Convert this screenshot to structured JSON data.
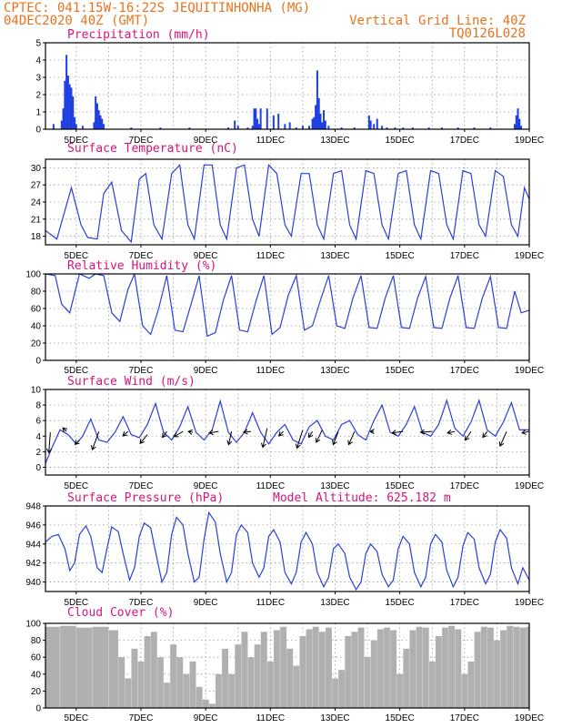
{
  "header": {
    "line1": "CPTEC:   041:15W-16:22S   JEQUITINHONHA (MG)",
    "line2": "04DEC2020 40Z (GMT)",
    "grid_note": "Vertical Grid Line: 40Z",
    "code": "TQ0126L028"
  },
  "x_tick_labels": [
    "5DEC",
    "7DEC",
    "9DEC",
    "11DEC",
    "13DEC",
    "15DEC",
    "17DEC",
    "19DEC"
  ],
  "colors": {
    "series": "#2a3fd8",
    "bars": "#1f3fe0",
    "cloud": "#b0b0b0",
    "title": "#d6147c",
    "header": "#e8731c"
  },
  "chart_data": [
    {
      "type": "bar",
      "title": "Precipitation (mm/h)",
      "ylim": [
        0,
        5
      ],
      "yticks": [
        0,
        1,
        2,
        3,
        4,
        5
      ],
      "x_day_range": [
        4.05,
        19.0
      ],
      "x": [
        4.3,
        4.55,
        4.6,
        4.65,
        4.7,
        4.75,
        4.8,
        4.85,
        4.9,
        4.95,
        5.0,
        5.2,
        5.55,
        5.6,
        5.65,
        5.7,
        5.75,
        5.8,
        5.85,
        6.7,
        7.6,
        8.5,
        9.7,
        9.9,
        10.0,
        10.3,
        10.45,
        10.5,
        10.55,
        10.6,
        10.65,
        10.7,
        10.9,
        11.1,
        11.25,
        11.45,
        11.6,
        11.8,
        12.0,
        12.2,
        12.3,
        12.35,
        12.4,
        12.45,
        12.5,
        12.55,
        12.6,
        12.65,
        12.7,
        12.8,
        13.2,
        13.6,
        14.05,
        14.1,
        14.2,
        14.3,
        14.45,
        14.6,
        14.85,
        15.1,
        15.4,
        15.9,
        16.3,
        16.8,
        17.3,
        17.8,
        18.55,
        18.6,
        18.65,
        18.7,
        18.75
      ],
      "values": [
        0.3,
        0.5,
        1.2,
        2.8,
        4.3,
        3.1,
        2.6,
        2.4,
        1.9,
        0.7,
        0.3,
        0.2,
        0.4,
        1.9,
        1.5,
        1.1,
        0.8,
        0.6,
        0.3,
        0.1,
        0.1,
        0.1,
        0.1,
        0.5,
        0.2,
        0.1,
        0.2,
        1.2,
        1.2,
        0.6,
        0.3,
        1.2,
        1.2,
        0.8,
        0.9,
        0.3,
        0.4,
        0.1,
        0.2,
        0.2,
        0.6,
        0.7,
        1.4,
        3.4,
        1.8,
        0.9,
        0.4,
        1.1,
        0.5,
        0.2,
        0.1,
        0.1,
        0.8,
        0.5,
        0.3,
        0.6,
        0.2,
        0.1,
        0.1,
        0.1,
        0.1,
        0.1,
        0.1,
        0.1,
        0.1,
        0.1,
        0.3,
        0.8,
        1.2,
        0.6,
        0.2
      ]
    },
    {
      "type": "line",
      "title": "Surface Temperature (nC)",
      "ylim": [
        16.5,
        31.5
      ],
      "yticks": [
        18,
        21,
        24,
        27,
        30
      ],
      "x_day_range": [
        4.05,
        19.0
      ],
      "x": [
        4.05,
        4.4,
        4.85,
        5.15,
        5.35,
        5.65,
        5.85,
        6.1,
        6.4,
        6.7,
        6.95,
        7.15,
        7.4,
        7.65,
        7.95,
        8.2,
        8.45,
        8.65,
        8.95,
        9.2,
        9.45,
        9.65,
        9.95,
        10.2,
        10.45,
        10.65,
        10.95,
        11.2,
        11.45,
        11.65,
        11.95,
        12.2,
        12.45,
        12.65,
        12.95,
        13.2,
        13.45,
        13.65,
        13.95,
        14.2,
        14.45,
        14.65,
        14.95,
        15.2,
        15.45,
        15.65,
        15.95,
        16.2,
        16.45,
        16.65,
        16.95,
        17.2,
        17.45,
        17.65,
        17.95,
        18.2,
        18.45,
        18.65,
        18.85,
        19.0
      ],
      "values": [
        19.0,
        17.5,
        26.5,
        20.0,
        17.8,
        17.5,
        25.5,
        27.5,
        19.0,
        17.0,
        28.0,
        29.0,
        20.0,
        17.5,
        29.0,
        30.5,
        20.0,
        17.5,
        30.5,
        30.5,
        20.0,
        17.5,
        30.0,
        30.5,
        21.0,
        18.0,
        30.5,
        29.0,
        20.0,
        18.0,
        29.0,
        29.0,
        20.0,
        17.5,
        29.0,
        29.5,
        20.0,
        17.5,
        29.5,
        29.0,
        20.0,
        17.5,
        29.0,
        29.5,
        20.0,
        17.5,
        29.5,
        29.0,
        20.0,
        17.5,
        29.5,
        29.0,
        20.0,
        18.0,
        29.5,
        28.5,
        20.0,
        18.0,
        26.5,
        24.5
      ]
    },
    {
      "type": "line",
      "title": "Relative Humidity (%)",
      "ylim": [
        0,
        100
      ],
      "yticks": [
        0,
        20,
        40,
        60,
        80,
        100
      ],
      "x_day_range": [
        4.05,
        19.0
      ],
      "x": [
        4.05,
        4.35,
        4.55,
        4.8,
        5.1,
        5.4,
        5.6,
        5.85,
        6.1,
        6.35,
        6.6,
        6.8,
        7.05,
        7.3,
        7.55,
        7.8,
        8.05,
        8.3,
        8.55,
        8.8,
        9.05,
        9.3,
        9.55,
        9.8,
        10.05,
        10.3,
        10.55,
        10.8,
        11.05,
        11.3,
        11.55,
        11.8,
        12.05,
        12.3,
        12.55,
        12.8,
        13.05,
        13.3,
        13.55,
        13.8,
        14.05,
        14.3,
        14.55,
        14.8,
        15.05,
        15.3,
        15.55,
        15.8,
        16.05,
        16.3,
        16.55,
        16.8,
        17.05,
        17.3,
        17.55,
        17.8,
        18.05,
        18.3,
        18.55,
        18.75,
        19.0
      ],
      "values": [
        100,
        98,
        65,
        55,
        100,
        95,
        100,
        98,
        55,
        45,
        82,
        100,
        40,
        30,
        60,
        98,
        35,
        33,
        65,
        98,
        28,
        32,
        70,
        98,
        35,
        33,
        68,
        98,
        30,
        38,
        75,
        98,
        35,
        40,
        70,
        98,
        40,
        37,
        72,
        98,
        38,
        37,
        72,
        98,
        38,
        37,
        72,
        97,
        38,
        37,
        72,
        98,
        38,
        37,
        72,
        97,
        38,
        37,
        80,
        55,
        58
      ]
    },
    {
      "type": "line",
      "title": "Surface Wind (m/s)",
      "ylim": [
        -1,
        10
      ],
      "yticks": [
        0,
        2,
        4,
        6,
        8,
        10
      ],
      "x_day_range": [
        4.05,
        19.0
      ],
      "x": [
        4.05,
        4.25,
        4.5,
        4.75,
        5.0,
        5.2,
        5.45,
        5.7,
        5.95,
        6.2,
        6.45,
        6.7,
        6.95,
        7.2,
        7.45,
        7.7,
        7.95,
        8.2,
        8.45,
        8.7,
        8.95,
        9.2,
        9.45,
        9.7,
        9.95,
        10.2,
        10.45,
        10.7,
        10.95,
        11.2,
        11.45,
        11.7,
        11.95,
        12.2,
        12.45,
        12.7,
        12.95,
        13.2,
        13.45,
        13.7,
        13.95,
        14.2,
        14.45,
        14.7,
        14.95,
        15.2,
        15.45,
        15.7,
        15.95,
        16.2,
        16.45,
        16.7,
        16.95,
        17.2,
        17.45,
        17.7,
        17.95,
        18.2,
        18.45,
        18.7,
        19.0
      ],
      "values": [
        0.5,
        2.5,
        4.8,
        4.2,
        3.0,
        4.0,
        6.2,
        3.5,
        3.2,
        4.5,
        6.5,
        4.2,
        3.8,
        5.5,
        8.2,
        4.5,
        3.5,
        5.2,
        7.8,
        4.5,
        3.5,
        4.8,
        8.5,
        4.5,
        3.2,
        4.5,
        7.0,
        4.5,
        3.0,
        4.5,
        5.5,
        3.5,
        3.0,
        5.2,
        6.0,
        4.0,
        3.5,
        5.5,
        6.0,
        4.2,
        3.5,
        6.0,
        8.0,
        4.5,
        4.0,
        5.5,
        7.8,
        4.5,
        4.0,
        5.5,
        8.6,
        5.0,
        4.0,
        5.8,
        8.6,
        4.8,
        4.0,
        5.8,
        8.3,
        4.8,
        4.8
      ],
      "vectors": [
        {
          "x": 4.2,
          "y": 4.5,
          "dx": -0.2,
          "dy": -2.8
        },
        {
          "x": 4.7,
          "y": 4.6,
          "dx": -0.5,
          "dy": 0.5
        },
        {
          "x": 5.1,
          "y": 3.5,
          "dx": -0.6,
          "dy": -0.6
        },
        {
          "x": 5.7,
          "y": 4.6,
          "dx": -0.9,
          "dy": -2.5
        },
        {
          "x": 6.6,
          "y": 4.6,
          "dx": -0.7,
          "dy": -0.6
        },
        {
          "x": 7.2,
          "y": 4.2,
          "dx": -1.0,
          "dy": -1.2
        },
        {
          "x": 7.8,
          "y": 4.6,
          "dx": -0.6,
          "dy": -0.8
        },
        {
          "x": 8.3,
          "y": 4.6,
          "dx": -1.2,
          "dy": -0.7
        },
        {
          "x": 8.6,
          "y": 4.5,
          "dx": -0.6,
          "dy": 0.1
        },
        {
          "x": 9.4,
          "y": 4.6,
          "dx": -1.3,
          "dy": -0.2
        },
        {
          "x": 9.8,
          "y": 4.6,
          "dx": -0.4,
          "dy": -1.8
        },
        {
          "x": 10.4,
          "y": 4.6,
          "dx": -1.0,
          "dy": -0.1
        },
        {
          "x": 10.9,
          "y": 5.0,
          "dx": -0.6,
          "dy": -2.6
        },
        {
          "x": 11.4,
          "y": 4.6,
          "dx": -0.6,
          "dy": -0.6
        },
        {
          "x": 12.0,
          "y": 4.8,
          "dx": -0.8,
          "dy": -2.5
        },
        {
          "x": 12.3,
          "y": 4.6,
          "dx": -0.5,
          "dy": -0.8
        },
        {
          "x": 12.6,
          "y": 4.8,
          "dx": -0.8,
          "dy": -1.7
        },
        {
          "x": 13.1,
          "y": 4.6,
          "dx": -0.7,
          "dy": -1.8
        },
        {
          "x": 13.6,
          "y": 4.6,
          "dx": -0.8,
          "dy": -1.8
        },
        {
          "x": 14.2,
          "y": 4.6,
          "dx": -0.5,
          "dy": 0.0
        },
        {
          "x": 15.1,
          "y": 4.6,
          "dx": -1.5,
          "dy": -0.2
        },
        {
          "x": 16.0,
          "y": 4.6,
          "dx": -1.6,
          "dy": -0.1
        },
        {
          "x": 16.7,
          "y": 4.6,
          "dx": -1.0,
          "dy": -0.2
        },
        {
          "x": 17.2,
          "y": 4.6,
          "dx": -0.8,
          "dy": -1.2
        },
        {
          "x": 17.7,
          "y": 4.6,
          "dx": -0.6,
          "dy": -0.8
        },
        {
          "x": 18.3,
          "y": 4.6,
          "dx": -0.9,
          "dy": -2.0
        },
        {
          "x": 19.0,
          "y": 4.6,
          "dx": -1.0,
          "dy": -0.2
        }
      ]
    },
    {
      "type": "line",
      "title": "Surface Pressure (hPa)",
      "subtitle": "Model Altitude: 625.182 m",
      "ylim": [
        939,
        948
      ],
      "yticks": [
        940,
        942,
        944,
        946,
        948
      ],
      "x_day_range": [
        4.05,
        19.0
      ],
      "x": [
        4.05,
        4.25,
        4.45,
        4.65,
        4.8,
        4.95,
        5.1,
        5.3,
        5.45,
        5.65,
        5.8,
        5.95,
        6.1,
        6.3,
        6.45,
        6.65,
        6.8,
        6.95,
        7.1,
        7.3,
        7.45,
        7.65,
        7.8,
        7.95,
        8.1,
        8.3,
        8.45,
        8.65,
        8.8,
        8.95,
        9.1,
        9.3,
        9.45,
        9.65,
        9.8,
        9.95,
        10.1,
        10.3,
        10.45,
        10.65,
        10.8,
        10.95,
        11.1,
        11.3,
        11.45,
        11.65,
        11.8,
        11.95,
        12.1,
        12.3,
        12.45,
        12.65,
        12.8,
        12.95,
        13.1,
        13.3,
        13.45,
        13.65,
        13.8,
        13.95,
        14.1,
        14.3,
        14.45,
        14.65,
        14.8,
        14.95,
        15.1,
        15.3,
        15.45,
        15.65,
        15.8,
        15.95,
        16.1,
        16.3,
        16.45,
        16.65,
        16.8,
        16.95,
        17.1,
        17.3,
        17.45,
        17.65,
        17.8,
        17.95,
        18.1,
        18.3,
        18.45,
        18.65,
        18.8,
        19.0
      ],
      "values": [
        944.2,
        944.8,
        945.0,
        943.5,
        941.2,
        942.0,
        945.0,
        945.9,
        944.8,
        941.5,
        941.0,
        943.5,
        945.8,
        945.3,
        943.0,
        940.2,
        941.5,
        944.8,
        946.2,
        945.7,
        943.2,
        940.0,
        941.0,
        945.0,
        946.8,
        946.0,
        943.0,
        940.0,
        940.5,
        944.5,
        947.3,
        946.3,
        943.0,
        940.0,
        941.0,
        945.0,
        946.0,
        945.2,
        942.0,
        940.5,
        941.5,
        944.8,
        945.5,
        944.2,
        941.0,
        939.8,
        941.0,
        944.2,
        945.2,
        944.0,
        941.0,
        939.5,
        940.5,
        943.5,
        944.0,
        943.0,
        940.5,
        939.2,
        940.0,
        943.0,
        944.0,
        943.2,
        940.8,
        939.5,
        940.2,
        943.5,
        944.8,
        944.0,
        941.0,
        939.5,
        940.5,
        944.0,
        945.0,
        944.2,
        941.2,
        939.5,
        940.5,
        943.8,
        945.2,
        944.5,
        941.5,
        939.8,
        940.8,
        944.2,
        945.5,
        944.6,
        941.5,
        939.8,
        941.5,
        940.2
      ]
    },
    {
      "type": "bar",
      "title": "Cloud Cover (%)",
      "ylim": [
        0,
        100
      ],
      "yticks": [
        0,
        20,
        40,
        60,
        80,
        100
      ],
      "x_day_range": [
        4.05,
        19.0
      ],
      "x": [
        4.05,
        4.5,
        5.0,
        5.5,
        6.0,
        6.3,
        6.5,
        6.7,
        6.9,
        7.1,
        7.3,
        7.5,
        7.7,
        7.9,
        8.1,
        8.3,
        8.5,
        8.7,
        8.9,
        9.1,
        9.3,
        9.5,
        9.7,
        9.9,
        10.1,
        10.3,
        10.5,
        10.7,
        10.9,
        11.1,
        11.3,
        11.5,
        11.7,
        11.9,
        12.1,
        12.3,
        12.5,
        12.7,
        12.9,
        13.1,
        13.3,
        13.5,
        13.7,
        13.9,
        14.1,
        14.3,
        14.5,
        14.7,
        14.9,
        15.1,
        15.3,
        15.5,
        15.7,
        15.9,
        16.1,
        16.3,
        16.5,
        16.7,
        16.9,
        17.1,
        17.3,
        17.5,
        17.7,
        17.9,
        18.1,
        18.3,
        18.5,
        18.7,
        18.9
      ],
      "values": [
        96,
        97,
        95,
        96,
        92,
        60,
        35,
        70,
        55,
        85,
        90,
        60,
        30,
        75,
        60,
        40,
        55,
        25,
        10,
        5,
        40,
        70,
        40,
        75,
        90,
        60,
        75,
        90,
        55,
        92,
        96,
        70,
        50,
        85,
        93,
        96,
        90,
        95,
        35,
        45,
        85,
        90,
        95,
        60,
        80,
        93,
        95,
        92,
        40,
        70,
        92,
        96,
        95,
        55,
        85,
        95,
        97,
        93,
        40,
        55,
        90,
        96,
        95,
        80,
        92,
        97,
        96,
        95,
        96
      ]
    }
  ]
}
